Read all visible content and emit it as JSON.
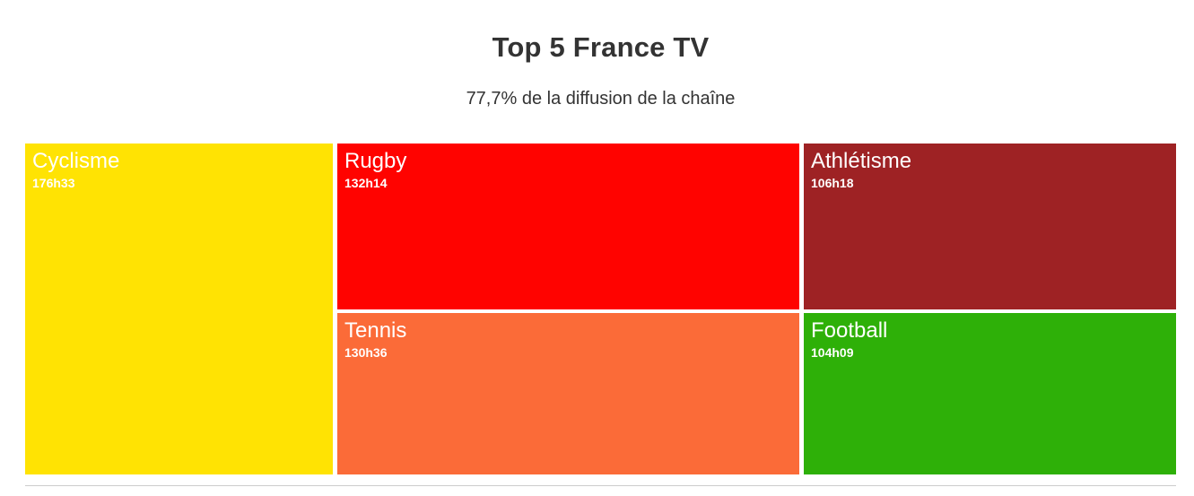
{
  "chart_data": {
    "type": "treemap",
    "title": "Top 5 France TV",
    "subtitle": "77,7% de la diffusion de la chaîne",
    "value_format": "heures (hhhMM)",
    "items": [
      {
        "label": "Cyclisme",
        "value": "176h33",
        "hours": 176.55,
        "color": "#FFE303"
      },
      {
        "label": "Rugby",
        "value": "132h14",
        "hours": 132.23,
        "color": "#FF0300"
      },
      {
        "label": "Tennis",
        "value": "130h36",
        "hours": 130.6,
        "color": "#FB6B38"
      },
      {
        "label": "Athlétisme",
        "value": "106h18",
        "hours": 106.3,
        "color": "#9E2224"
      },
      {
        "label": "Football",
        "value": "104h09",
        "hours": 104.15,
        "color": "#2EB008"
      }
    ],
    "legend": "none",
    "text_color_on_cells": "#FFFFFF"
  },
  "colors": {
    "title_text": "#333333",
    "subtitle_text": "#333333",
    "background": "#FFFFFF",
    "divider": "#CCCCCC"
  }
}
